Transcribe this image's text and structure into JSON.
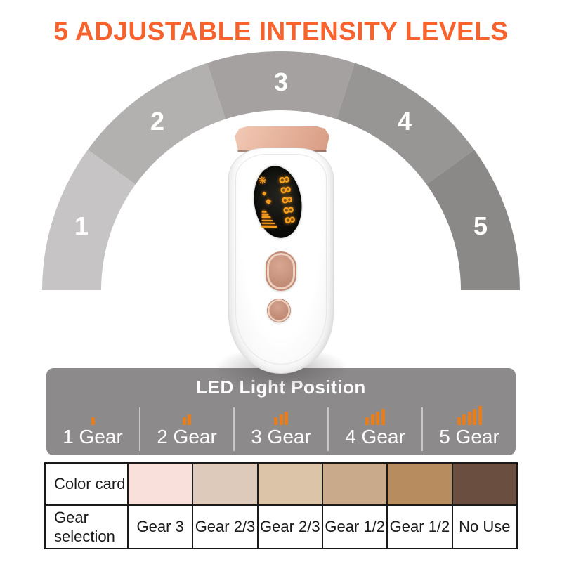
{
  "title": {
    "text": "5 ADJUSTABLE INTENSITY LEVELS",
    "color": "#f7622d"
  },
  "intensity_arc": {
    "segments": [
      {
        "label": "1",
        "color": "#c6c4c4"
      },
      {
        "label": "2",
        "color": "#b3b0b0"
      },
      {
        "label": "3",
        "color": "#a5a1a1"
      },
      {
        "label": "4",
        "color": "#989595"
      },
      {
        "label": "5",
        "color": "#8b8888"
      }
    ]
  },
  "device": {
    "display": {
      "digits": "88888",
      "fan_icon": "❋",
      "small_diamond_icon": "◆",
      "large_diamond_icon": "◆",
      "digit_color": "#f6a01e"
    }
  },
  "led_panel": {
    "title": "LED Light Position",
    "background": "#8c8a8a",
    "bar_color": "#e87e1b",
    "items": [
      {
        "label": "1 Gear",
        "bars": 1
      },
      {
        "label": "2 Gear",
        "bars": 2
      },
      {
        "label": "3 Gear",
        "bars": 3
      },
      {
        "label": "4 Gear",
        "bars": 4
      },
      {
        "label": "5 Gear",
        "bars": 5
      }
    ]
  },
  "skin_table": {
    "rows": [
      {
        "header": "Color card",
        "swatches": [
          "#fae0da",
          "#decaba",
          "#dcc4a8",
          "#c9ab8c",
          "#b78c5e",
          "#6a4e3f"
        ]
      },
      {
        "header": "Gear selection",
        "values": [
          "Gear 3",
          "Gear 2/3",
          "Gear 2/3",
          "Gear 1/2",
          "Gear 1/2",
          "No Use"
        ]
      }
    ]
  }
}
